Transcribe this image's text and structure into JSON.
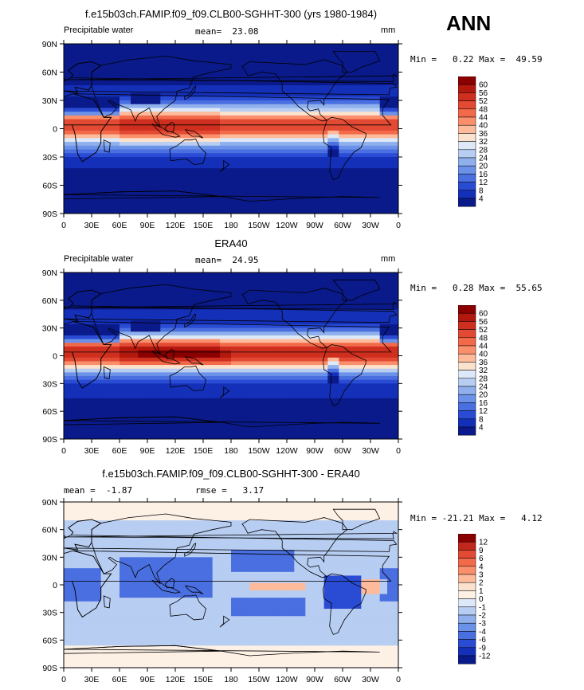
{
  "season": "ANN",
  "panels": [
    {
      "title": "f.e15b03ch.FAMIP.f09_f09.CLB00-SGHHT-300 (yrs 1980-1984)",
      "left_label": "Precipitable water",
      "mid_label": "mean=  23.08",
      "unit": "mm",
      "minmax": "Min =   0.22 Max =  49.59",
      "colorbar": {
        "labels": [
          "60",
          "56",
          "52",
          "48",
          "44",
          "40",
          "36",
          "32",
          "28",
          "24",
          "20",
          "16",
          "12",
          "8",
          "4"
        ],
        "colors": [
          "#8b0000",
          "#b2180e",
          "#cf2f1f",
          "#e34a33",
          "#f26a4a",
          "#fb8f6b",
          "#fdbb9b",
          "#fbe2cf",
          "#dde8f8",
          "#b7cdf2",
          "#8fb0ec",
          "#6b92e8",
          "#4a6fe0",
          "#2a4cd4",
          "#1530b8",
          "#0a1a8a"
        ]
      }
    },
    {
      "title": "ERA40",
      "left_label": "Precipitable water",
      "mid_label": "mean=  24.95",
      "unit": "mm",
      "minmax": "Min =   0.28 Max =  55.65",
      "colorbar": {
        "labels": [
          "60",
          "56",
          "52",
          "48",
          "44",
          "40",
          "36",
          "32",
          "28",
          "24",
          "20",
          "16",
          "12",
          "8",
          "4"
        ],
        "colors": [
          "#8b0000",
          "#b2180e",
          "#cf2f1f",
          "#e34a33",
          "#f26a4a",
          "#fb8f6b",
          "#fdbb9b",
          "#fbe2cf",
          "#dde8f8",
          "#b7cdf2",
          "#8fb0ec",
          "#6b92e8",
          "#4a6fe0",
          "#2a4cd4",
          "#1530b8",
          "#0a1a8a"
        ]
      }
    },
    {
      "title": "f.e15b03ch.FAMIP.f09_f09.CLB00-SGHHT-300 - ERA40",
      "left_label": "mean =  -1.87",
      "mid_label": "rmse =   3.17",
      "unit": "",
      "minmax": "Min = -21.21 Max =   4.12",
      "colorbar": {
        "labels": [
          "12",
          "9",
          "6",
          "4",
          "3",
          "2",
          "1",
          "0",
          "-1",
          "-2",
          "-3",
          "-4",
          "-6",
          "-9",
          "-12"
        ],
        "colors": [
          "#8b0000",
          "#c1271b",
          "#e34a33",
          "#f26a4a",
          "#fb8f6b",
          "#fdbb9b",
          "#fbe2cf",
          "#fdf1e6",
          "#dde8f8",
          "#b7cdf2",
          "#8fb0ec",
          "#6b92e8",
          "#4a6fe0",
          "#2a4cd4",
          "#1530b8",
          "#0a1a8a"
        ]
      }
    }
  ],
  "chart_data": {
    "type": "heatmap",
    "x_ticks": [
      "0",
      "30E",
      "60E",
      "90E",
      "120E",
      "150E",
      "180",
      "150W",
      "120W",
      "90W",
      "60W",
      "30W",
      "0"
    ],
    "y_ticks": [
      "90N",
      "60N",
      "30N",
      "0",
      "30S",
      "60S",
      "90S"
    ],
    "x_range": [
      0,
      360
    ],
    "y_range": [
      -90,
      90
    ],
    "panels": [
      {
        "min": 0.22,
        "max": 49.59,
        "mean": 23.08
      },
      {
        "min": 0.28,
        "max": 55.65,
        "mean": 24.95
      },
      {
        "min": -21.21,
        "max": 4.12,
        "mean": -1.87,
        "rmse": 3.17
      }
    ]
  }
}
